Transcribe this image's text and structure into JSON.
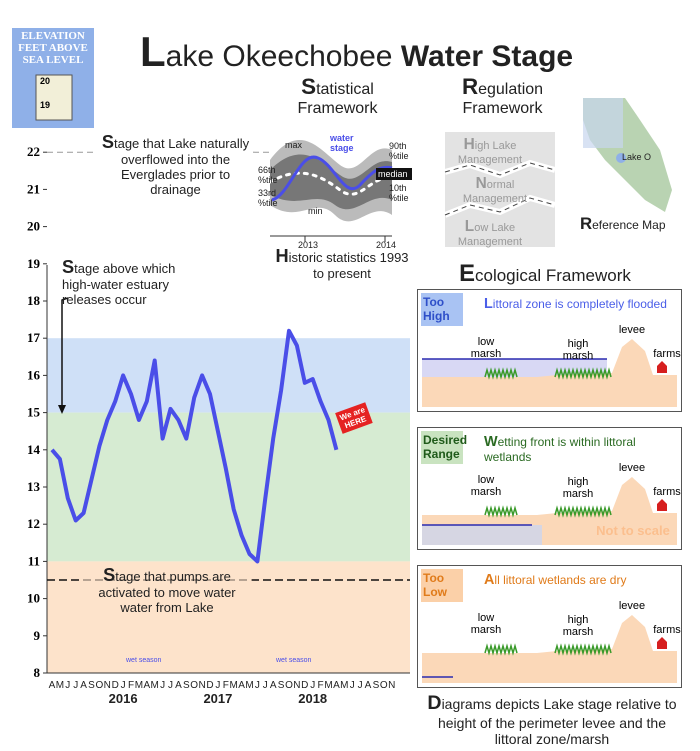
{
  "chart_data": {
    "type": "line",
    "categories": [
      "A",
      "M",
      "J",
      "J",
      "A",
      "S",
      "O",
      "N",
      "D",
      "J",
      "F",
      "M",
      "A",
      "M",
      "J",
      "J",
      "A",
      "S",
      "O",
      "N",
      "D",
      "J",
      "F",
      "M",
      "A",
      "M",
      "J",
      "J",
      "A",
      "S",
      "O",
      "N",
      "D",
      "J",
      "F",
      "M",
      "A",
      "M",
      "J",
      "J",
      "A",
      "S",
      "O",
      "N"
    ],
    "series": [
      {
        "name": "water stage",
        "color": "#4a4ee8",
        "values": [
          14.0,
          13.75,
          12.7,
          12.1,
          12.3,
          13.2,
          14.1,
          14.8,
          15.3,
          16.0,
          15.5,
          14.8,
          15.3,
          16.4,
          14.3,
          15.1,
          14.8,
          14.3,
          15.4,
          16.0,
          15.5,
          14.5,
          13.5,
          12.4,
          11.7,
          11.2,
          11.0,
          12.7,
          14.3,
          15.6,
          17.2,
          16.8,
          15.8,
          15.9,
          15.3,
          14.8,
          14.0,
          null,
          null,
          null,
          null,
          null,
          null,
          null
        ]
      }
    ],
    "years": [
      "2016",
      "2017",
      "2018"
    ],
    "ylim": [
      8,
      22
    ],
    "yticks": [
      8,
      9,
      10,
      11,
      12,
      13,
      14,
      15,
      16,
      17,
      18,
      19,
      20,
      21,
      22
    ],
    "zones": [
      {
        "from": 15,
        "to": 17,
        "color": "#cfe0f7"
      },
      {
        "from": 11,
        "to": 15,
        "color": "#d6ebd2"
      },
      {
        "from": 8,
        "to": 11,
        "color": "#fde3cb"
      }
    ],
    "reference_lines": [
      22,
      10.5
    ],
    "annotations": {
      "overflow": "Stage that Lake naturally overflowed into the Everglades prior to drainage",
      "releases": "Stage above which high-water estuary releases occur",
      "pumps": "Stage that pumps are activated to move water water from Lake",
      "here": "We are HERE",
      "wet_season": "wet season"
    }
  },
  "header": {
    "title": "Lake Okeechobee ",
    "title_bold": "Water Stage",
    "sign": "ELEVATION FEET ABOVE SEA LEVEL",
    "sign_marks": [
      "20",
      "19"
    ]
  },
  "statistical": {
    "title": "Statistical Framework",
    "labels": {
      "max": "max",
      "water": "water stage",
      "p90": "90th %tile",
      "p66": "66th %tile",
      "median": "median",
      "p33": "33rd %tile",
      "p10": "10th %tile",
      "min": "min",
      "y1": "2013",
      "y2": "2014"
    },
    "note": "Historic statistics 1993 to present"
  },
  "regulation": {
    "title": "Regulation Framework",
    "bands": [
      "High Lake Management",
      "Normal Management",
      "Low Lake Management"
    ]
  },
  "map": {
    "place": "Lake O",
    "title": "Reference Map"
  },
  "ecological": {
    "title": "Ecological Framework",
    "panels": [
      {
        "state": "Too High",
        "desc": "Littoral zone is completely flooded"
      },
      {
        "state": "Desired Range",
        "desc": "Wetting front is within littoral wetlands"
      },
      {
        "state": "Too Low",
        "desc": "All littoral wetlands are dry"
      }
    ],
    "labels": {
      "low": "low marsh",
      "high": "high marsh",
      "levee": "levee",
      "farms": "farms"
    },
    "scale_note": "Not to scale",
    "footer": "Diagrams depicts Lake stage relative to height of the perimeter levee and the littoral zone/marsh"
  }
}
